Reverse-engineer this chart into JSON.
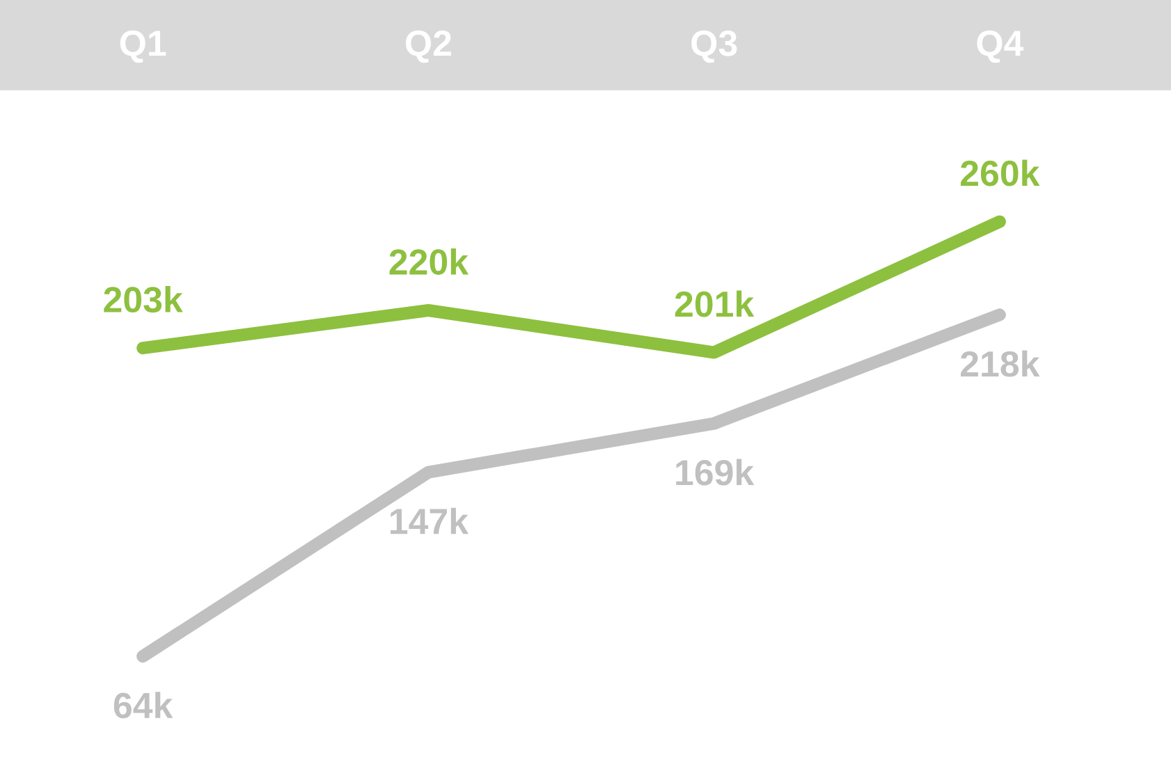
{
  "chart_data": {
    "type": "line",
    "categories": [
      "Q1",
      "Q2",
      "Q3",
      "Q4"
    ],
    "data_labels": true,
    "marker": "none",
    "line_style": "solid",
    "series": [
      {
        "color": "#8dc03f",
        "values": [
          203,
          220,
          201,
          260
        ],
        "value_labels": [
          "203k",
          "220k",
          "201k",
          "260k"
        ]
      },
      {
        "color": "#c0c0c0",
        "values": [
          64,
          147,
          169,
          218
        ],
        "value_labels": [
          "64k",
          "147k",
          "169k",
          "218k"
        ]
      }
    ]
  }
}
